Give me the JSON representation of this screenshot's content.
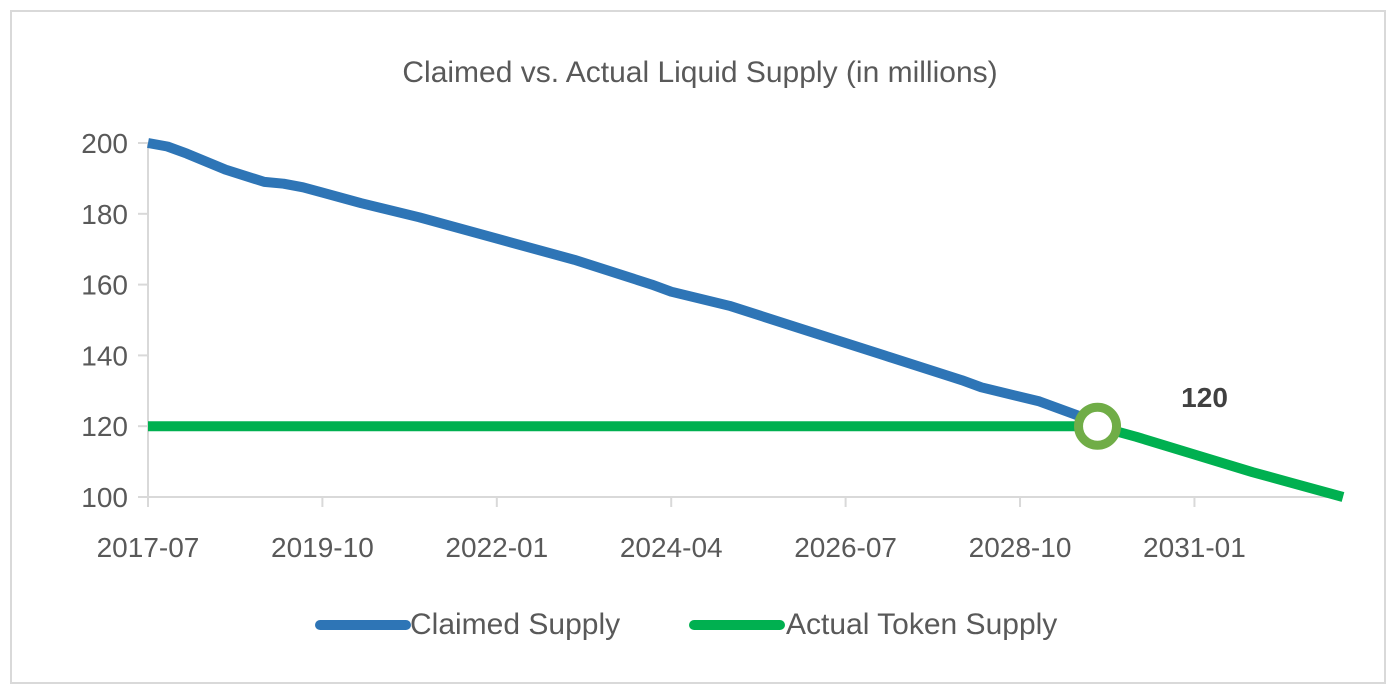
{
  "chart_data": {
    "type": "line",
    "title": "Claimed vs. Actual Liquid Supply (in millions)",
    "xlabel": "",
    "ylabel": "",
    "ylim": [
      100,
      200
    ],
    "yticks": [
      100,
      120,
      140,
      160,
      180,
      200
    ],
    "xlim": [
      "2017-07",
      "2032-12"
    ],
    "xticks": [
      "2017-07",
      "2019-10",
      "2022-01",
      "2024-04",
      "2026-07",
      "2028-10",
      "2031-01"
    ],
    "grid": false,
    "legend": "bottom",
    "series": [
      {
        "name": "Claimed Supply",
        "color": "#2E75B6",
        "points": [
          [
            "2017-07",
            200
          ],
          [
            "2017-10",
            199
          ],
          [
            "2018-01",
            197
          ],
          [
            "2018-07",
            192.5
          ],
          [
            "2019-01",
            189
          ],
          [
            "2019-04",
            188.5
          ],
          [
            "2019-07",
            187.5
          ],
          [
            "2019-10",
            186
          ],
          [
            "2020-04",
            183
          ],
          [
            "2021-01",
            179
          ],
          [
            "2022-01",
            173
          ],
          [
            "2023-01",
            167
          ],
          [
            "2024-01",
            160
          ],
          [
            "2024-04",
            158
          ],
          [
            "2025-01",
            154
          ],
          [
            "2026-01",
            147
          ],
          [
            "2027-01",
            140
          ],
          [
            "2028-01",
            133
          ],
          [
            "2028-04",
            131
          ],
          [
            "2029-01",
            127
          ],
          [
            "2029-10",
            121
          ]
        ]
      },
      {
        "name": "Actual Token Supply",
        "color": "#00B050",
        "points": [
          [
            "2017-07",
            120
          ],
          [
            "2029-10",
            120
          ],
          [
            "2030-04",
            117
          ],
          [
            "2031-01",
            112
          ],
          [
            "2031-10",
            107
          ],
          [
            "2032-04",
            104
          ],
          [
            "2032-12",
            100
          ]
        ]
      }
    ],
    "annotations": [
      {
        "label": "120",
        "x": "2029-10",
        "y": 120,
        "marker_color": "#70AD47"
      }
    ]
  }
}
